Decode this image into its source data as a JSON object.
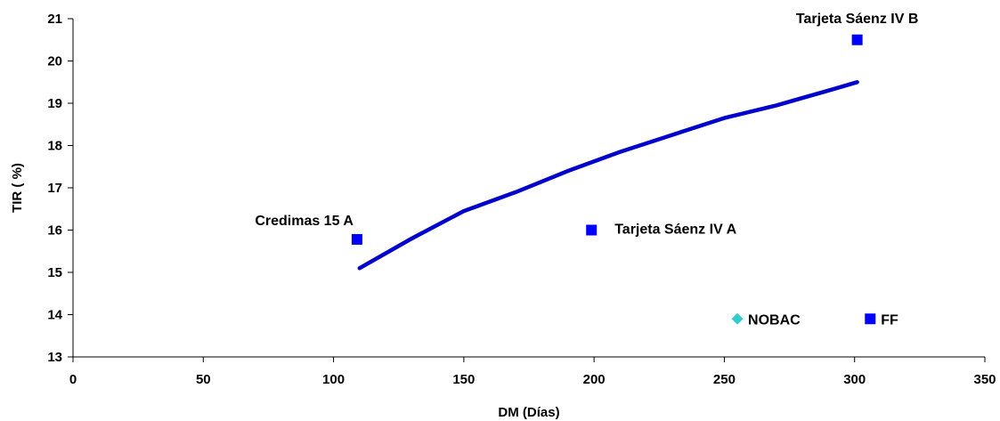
{
  "chart_data": {
    "type": "scatter",
    "title": "",
    "xlabel": "DM (Días)",
    "ylabel": "TIR ( %)",
    "xlim": [
      0,
      350
    ],
    "ylim": [
      13,
      21
    ],
    "x_ticks": [
      0,
      50,
      100,
      150,
      200,
      250,
      300,
      350
    ],
    "y_ticks": [
      13,
      14,
      15,
      16,
      17,
      18,
      19,
      20,
      21
    ],
    "x_tick_labels": [
      "0",
      "50",
      "100",
      "150",
      "200",
      "250",
      "300",
      "350"
    ],
    "y_tick_labels": [
      "13",
      "14",
      "15",
      "16",
      "17",
      "18",
      "19",
      "20",
      "21"
    ],
    "grid": false,
    "legend": "none",
    "points": [
      {
        "label": "Credimas 15 A",
        "x": 109,
        "y": 15.78,
        "marker": "square",
        "color": "#0000FF"
      },
      {
        "label": "Tarjeta Sáenz IV A",
        "x": 199,
        "y": 16.0,
        "marker": "square",
        "color": "#0000FF"
      },
      {
        "label": "Tarjeta Sáenz IV B",
        "x": 301,
        "y": 20.5,
        "marker": "square",
        "color": "#0000FF"
      },
      {
        "label": "FF",
        "x": 306,
        "y": 13.9,
        "marker": "square",
        "color": "#0000FF"
      },
      {
        "label": "NOBAC",
        "x": 255,
        "y": 13.9,
        "marker": "diamond",
        "color": "#33CCCC"
      }
    ],
    "trend_curve": {
      "type": "logarithmic",
      "color": "#0000CC",
      "x": [
        110,
        130,
        150,
        170,
        190,
        210,
        230,
        250,
        270,
        290,
        301
      ],
      "y": [
        15.1,
        15.8,
        16.45,
        16.9,
        17.4,
        17.85,
        18.25,
        18.65,
        18.95,
        19.3,
        19.5
      ]
    }
  }
}
